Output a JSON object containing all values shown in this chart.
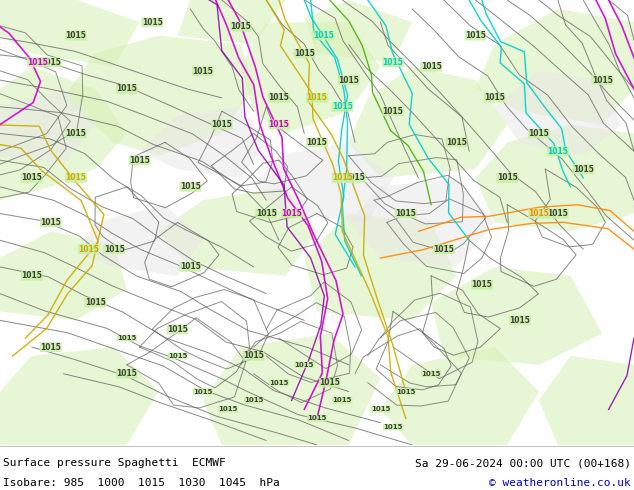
{
  "title_left": "Surface pressure Spaghetti  ECMWF",
  "title_right": "Sa 29-06-2024 00:00 UTC (00+168)",
  "subtitle_left": "Isobare: 985  1000  1015  1030  1045  hPa",
  "subtitle_right": "© weatheronline.co.uk",
  "map_bg": "#c8f0a0",
  "terrain_light": "#d8f0b8",
  "terrain_gray": "#c8c8c8",
  "terrain_white": "#e8e8e8",
  "footer_bg": "#ffffff",
  "fig_width": 6.34,
  "fig_height": 4.9,
  "dpi": 100,
  "main_contour_color": "#606060",
  "main_contour_lw": 0.7,
  "colored_lines": {
    "cyan": "#00cccc",
    "yellow": "#ccaa00",
    "magenta": "#cc00cc",
    "purple": "#8800aa",
    "orange": "#ff8800",
    "green": "#44aa00",
    "pink": "#ff44aa",
    "blue": "#0044cc",
    "red": "#cc2200",
    "teal": "#008888"
  },
  "label_fontsize": 6,
  "label_color": "#404040",
  "cyan_label_color": "#00aaaa",
  "magenta_label_color": "#cc00cc",
  "seed": 7
}
